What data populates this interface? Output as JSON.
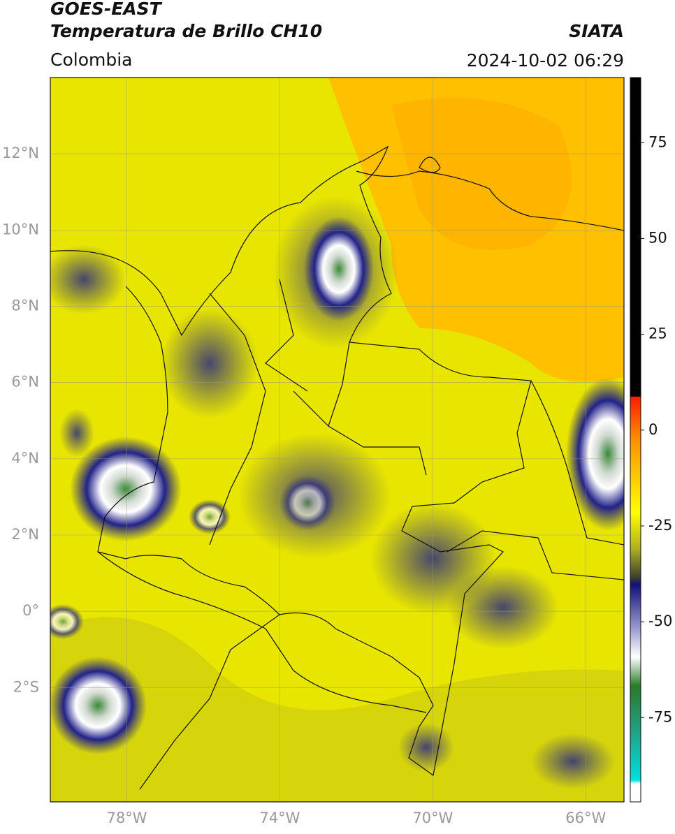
{
  "header": {
    "title": "GOES-EAST",
    "subtitle": "Temperatura de Brillo CH10",
    "source": "SIATA",
    "region": "Colombia",
    "datetime": "2024-10-02 06:29"
  },
  "map": {
    "lonlim": [
      -80,
      -65
    ],
    "latlim": [
      -5,
      14
    ],
    "lon_ticks": [
      {
        "value": -78,
        "label": "78°W"
      },
      {
        "value": -74,
        "label": "74°W"
      },
      {
        "value": -70,
        "label": "70°W"
      },
      {
        "value": -66,
        "label": "66°W"
      }
    ],
    "lat_ticks": [
      {
        "value": 12,
        "label": "12°N"
      },
      {
        "value": 10,
        "label": "10°N"
      },
      {
        "value": 8,
        "label": "8°N"
      },
      {
        "value": 6,
        "label": "6°N"
      },
      {
        "value": 4,
        "label": "4°N"
      },
      {
        "value": 2,
        "label": "2°N"
      },
      {
        "value": 0,
        "label": "0°"
      },
      {
        "value": -2,
        "label": "2°S"
      }
    ],
    "grid": true
  },
  "colorbar": {
    "lim": [
      -97,
      92
    ],
    "ticks": [
      75,
      50,
      25,
      0,
      -25,
      -50,
      -75
    ]
  }
}
